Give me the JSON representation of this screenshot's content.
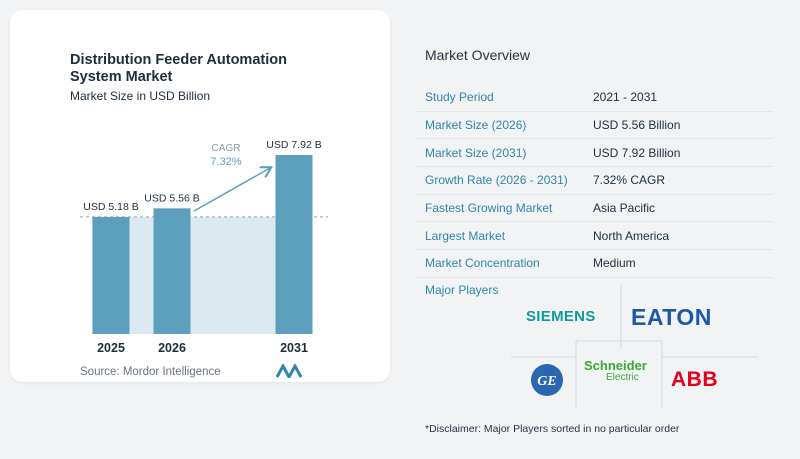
{
  "chart_card": {
    "title": "Distribution Feeder Automation System Market",
    "subtitle": "Market Size in USD Billion",
    "source": "Source:  Mordor Intelligence"
  },
  "chart_data": {
    "type": "bar",
    "title": "Distribution Feeder Automation System Market",
    "subtitle": "Market Size in USD Billion",
    "categories": [
      "2025",
      "2026",
      "2031"
    ],
    "values": [
      5.18,
      5.56,
      7.92
    ],
    "data_labels": [
      "USD 5.18 B",
      "USD 5.56 B",
      "USD 7.92 B"
    ],
    "annotation": {
      "label": "CAGR",
      "value": "7.32%",
      "from": "2026",
      "to": "2031"
    },
    "ylim": [
      0,
      7.92
    ],
    "grid": false,
    "xlabel": "",
    "ylabel": ""
  },
  "overview": {
    "title": "Market Overview",
    "rows": [
      {
        "key": "Study Period",
        "value": "2021 - 2031"
      },
      {
        "key": "Market Size (2026)",
        "value": "USD 5.56 Billion"
      },
      {
        "key": "Market Size (2031)",
        "value": "USD 7.92 Billion"
      },
      {
        "key": "Growth Rate (2026 - 2031)",
        "value": "7.32% CAGR"
      },
      {
        "key": "Fastest Growing Market",
        "value": "Asia Pacific"
      },
      {
        "key": "Largest Market",
        "value": "North America"
      },
      {
        "key": "Market Concentration",
        "value": "Medium"
      }
    ]
  },
  "players": {
    "label": "Major Players",
    "logos": {
      "siemens": "SIEMENS",
      "eaton": "EATON",
      "ge": "GE",
      "schneider_top": "Schneider",
      "schneider_bottom": "Electric",
      "abb": "ABB"
    }
  },
  "disclaimer": "*Disclaimer: Major Players sorted in no particular order",
  "colors": {
    "bar": "#5b9fbd",
    "area": "#dde9f1",
    "accent": "#2f86a6",
    "siemens": "#0f9a9b",
    "eaton": "#1c5aa8",
    "ge": "#2b67b1",
    "schneider": "#3aaa35",
    "abb": "#e2001a"
  }
}
